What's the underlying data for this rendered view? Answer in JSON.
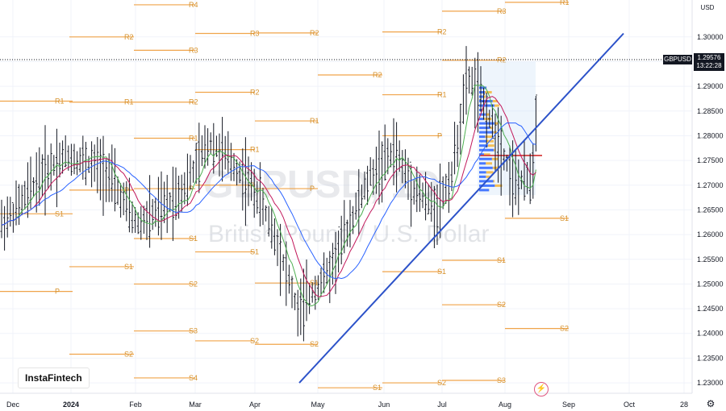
{
  "currency_button": "USD",
  "symbol_tag": "GBPUSD",
  "last_price": "1.29576",
  "countdown": "13:22:28",
  "watermark": {
    "symbol": "GBPUSD, 1D",
    "description": "British Pound / U.S. Dollar"
  },
  "brand": "InstaFintech",
  "icons": {
    "flash": "lightning-icon",
    "settings": "gear-icon"
  },
  "colors": {
    "pivot": "#f0a44a",
    "trendline": "#2c52c9",
    "ma_fast": "#4caf50",
    "ma_mid": "#c2185b",
    "ma_slow": "#2962ff",
    "volume_profile_up": "#2962ff",
    "volume_profile_down": "#f5b537",
    "poc": "#d32f2f"
  },
  "chart_data": {
    "type": "candlestick",
    "y_ticks": [
      "1.30000",
      "1.29500",
      "1.29000",
      "1.28500",
      "1.28000",
      "1.27500",
      "1.27000",
      "1.26500",
      "1.26000",
      "1.25500",
      "1.25000",
      "1.24500",
      "1.24000",
      "1.23500",
      "1.23000"
    ],
    "x_ticks": [
      "Dec",
      "2024",
      "Feb",
      "Mar",
      "Apr",
      "May",
      "Jun",
      "Jul",
      "Aug",
      "Sep",
      "Oct",
      "28"
    ],
    "ylim": [
      1.2275,
      1.3075
    ],
    "pivot_levels": [
      {
        "label": "R1",
        "y": 1.287,
        "x0": 0,
        "x1": 90
      },
      {
        "label": "R2",
        "y": 1.3,
        "x0": 86,
        "x1": 166
      },
      {
        "label": "R1",
        "y": 1.2868,
        "x0": 86,
        "x1": 166
      },
      {
        "label": "P",
        "y": 1.269,
        "x0": 86,
        "x1": 166
      },
      {
        "label": "S1",
        "y": 1.2535,
        "x0": 86,
        "x1": 166
      },
      {
        "label": "S2",
        "y": 1.2358,
        "x0": 86,
        "x1": 166
      },
      {
        "label": "P",
        "y": 1.2485,
        "x0": 0,
        "x1": 90
      },
      {
        "label": "S1",
        "y": 1.2642,
        "x0": 0,
        "x1": 90
      },
      {
        "label": "R4",
        "y": 1.3065,
        "x0": 166,
        "x1": 242
      },
      {
        "label": "R3",
        "y": 1.2973,
        "x0": 166,
        "x1": 242
      },
      {
        "label": "R2",
        "y": 1.2868,
        "x0": 166,
        "x1": 242
      },
      {
        "label": "R1",
        "y": 1.2795,
        "x0": 166,
        "x1": 242
      },
      {
        "label": "P",
        "y": 1.2693,
        "x0": 166,
        "x1": 242
      },
      {
        "label": "S1",
        "y": 1.2592,
        "x0": 166,
        "x1": 242
      },
      {
        "label": "S2",
        "y": 1.25,
        "x0": 166,
        "x1": 242
      },
      {
        "label": "S3",
        "y": 1.2405,
        "x0": 166,
        "x1": 242
      },
      {
        "label": "S4",
        "y": 1.231,
        "x0": 166,
        "x1": 242
      },
      {
        "label": "R3",
        "y": 1.3007,
        "x0": 242,
        "x1": 316
      },
      {
        "label": "R2",
        "y": 1.2888,
        "x0": 242,
        "x1": 316
      },
      {
        "label": "R1",
        "y": 1.2772,
        "x0": 242,
        "x1": 316
      },
      {
        "label": "P",
        "y": 1.27,
        "x0": 242,
        "x1": 316
      },
      {
        "label": "S1",
        "y": 1.2565,
        "x0": 242,
        "x1": 316
      },
      {
        "label": "S2",
        "y": 1.2385,
        "x0": 242,
        "x1": 316
      },
      {
        "label": "R2",
        "y": 1.3008,
        "x0": 316,
        "x1": 394
      },
      {
        "label": "R1",
        "y": 1.283,
        "x0": 316,
        "x1": 394
      },
      {
        "label": "P",
        "y": 1.2693,
        "x0": 316,
        "x1": 394
      },
      {
        "label": "S1",
        "y": 1.2502,
        "x0": 316,
        "x1": 394
      },
      {
        "label": "S2",
        "y": 1.2378,
        "x0": 316,
        "x1": 394
      },
      {
        "label": "S1",
        "y": 1.229,
        "x0": 394,
        "x1": 474
      },
      {
        "label": "R2",
        "y": 1.2923,
        "x0": 394,
        "x1": 474
      },
      {
        "label": "R2",
        "y": 1.301,
        "x0": 474,
        "x1": 548
      },
      {
        "label": "R1",
        "y": 1.2883,
        "x0": 474,
        "x1": 548
      },
      {
        "label": "P",
        "y": 1.28,
        "x0": 474,
        "x1": 548
      },
      {
        "label": "S1",
        "y": 1.2525,
        "x0": 474,
        "x1": 548
      },
      {
        "label": "S2",
        "y": 1.23,
        "x0": 474,
        "x1": 548
      },
      {
        "label": "R3",
        "y": 1.3052,
        "x0": 548,
        "x1": 626
      },
      {
        "label": "R2",
        "y": 1.2953,
        "x0": 548,
        "x1": 626
      },
      {
        "label": "S1",
        "y": 1.2548,
        "x0": 548,
        "x1": 626
      },
      {
        "label": "S2",
        "y": 1.2458,
        "x0": 548,
        "x1": 626
      },
      {
        "label": "S3",
        "y": 1.2305,
        "x0": 548,
        "x1": 626
      },
      {
        "label": "R1",
        "y": 1.307,
        "x0": 626,
        "x1": 705
      },
      {
        "label": "S1",
        "y": 1.2633,
        "x0": 626,
        "x1": 705
      },
      {
        "label": "S2",
        "y": 1.241,
        "x0": 626,
        "x1": 705
      }
    ],
    "trendline": {
      "from": [
        371,
        1.23
      ],
      "to": [
        773,
        1.3007
      ]
    }
  }
}
